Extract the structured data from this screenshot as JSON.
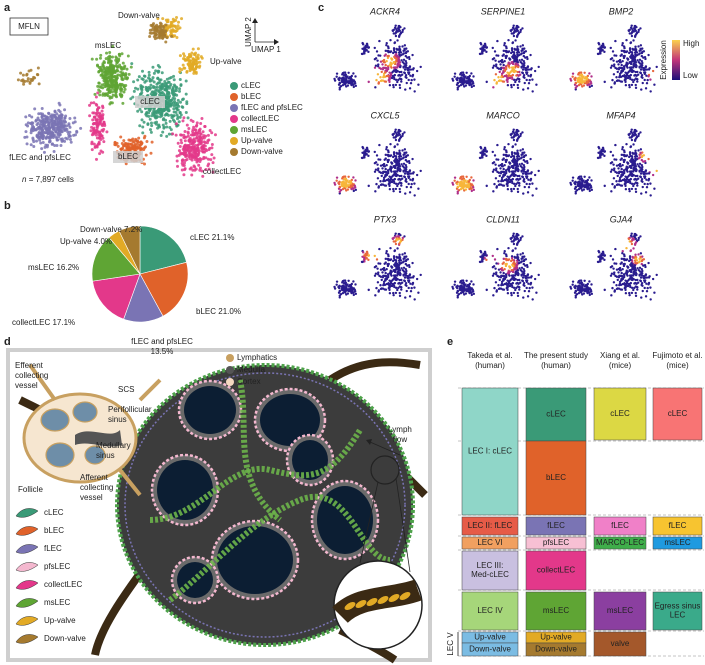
{
  "panels": {
    "a": {
      "letter": "a",
      "sample": "MFLN",
      "umap_y": "UMAP 2",
      "umap_x": "UMAP 1",
      "cluster_labels": [
        "Down-valve",
        "msLEC",
        "Up-valve",
        "cLEC",
        "fLEC and pfsLEC",
        "bLEC",
        "collectLEC"
      ],
      "n_symbol": "n",
      "n_text": "= 7,897 cells"
    },
    "b": {
      "letter": "b"
    },
    "c": {
      "letter": "c",
      "genes": [
        "ACKR4",
        "SERPINE1",
        "BMP2",
        "CXCL5",
        "MARCO",
        "MFAP4",
        "PTX3",
        "CLDN11",
        "GJA4"
      ],
      "colorbar_title": "Expression",
      "high": "High",
      "low": "Low"
    },
    "d": {
      "letter": "d",
      "inset_legend": [
        "Lymphatics",
        "Medulla",
        "Cortex"
      ],
      "inset_labels": [
        [
          "Efferent",
          "collecting",
          "vessel"
        ],
        [
          "SCS"
        ],
        [
          "Perifollicular",
          "sinus"
        ],
        [
          "Medullary",
          "sinus"
        ],
        [
          "Follicle"
        ],
        [
          "Afferent",
          "collecting",
          "vessel"
        ]
      ],
      "cell_types": [
        {
          "name": "cLEC",
          "color": "#3a9a77"
        },
        {
          "name": "bLEC",
          "color": "#e0622a"
        },
        {
          "name": "fLEC",
          "color": "#7a74b4"
        },
        {
          "name": "pfsLEC",
          "color": "#f4b8cf"
        },
        {
          "name": "collectLEC",
          "color": "#e3388a"
        },
        {
          "name": "msLEC",
          "color": "#5fa534"
        },
        {
          "name": "Up-valve",
          "color": "#e2aa25"
        },
        {
          "name": "Down-valve",
          "color": "#a57a2f"
        }
      ],
      "flow_label": [
        "Lymph",
        "flow"
      ]
    },
    "e": {
      "letter": "e",
      "side_label": "LEC V",
      "columns": [
        {
          "header": [
            "Takeda et al.",
            "(human)"
          ],
          "cells": [
            {
              "lines": [
                "LEC I: cLEC"
              ],
              "color": "#8fd6c8"
            },
            {
              "lines": [
                "LEC II: fLEC"
              ],
              "color": "#e65b47"
            },
            {
              "lines": [
                "LEC VI"
              ],
              "color": "#f1a060"
            },
            {
              "lines": [
                "LEC III:",
                "Med-cLEC"
              ],
              "color": "#c9c0e0"
            },
            {
              "lines": [
                "LEC IV"
              ],
              "color": "#a6d67a"
            },
            {
              "lines": [
                "Up-valve"
              ],
              "color": "#7bbce3"
            },
            {
              "lines": [
                "Down-valve"
              ],
              "color": "#7bbce3"
            }
          ]
        },
        {
          "header": [
            "The present study",
            "(human)"
          ],
          "cells": [
            {
              "lines": [
                "cLEC"
              ],
              "color": "#3a9a77"
            },
            {
              "lines": [
                "bLEC"
              ],
              "color": "#e0622a"
            },
            {
              "lines": [
                "fLEC"
              ],
              "color": "#7a74b4"
            },
            {
              "lines": [
                "pfsLEC"
              ],
              "color": "#f7c0d4"
            },
            {
              "lines": [
                "collectLEC"
              ],
              "color": "#e3388a"
            },
            {
              "lines": [
                "msLEC"
              ],
              "color": "#5fa534"
            },
            {
              "lines": [
                "Up-valve"
              ],
              "color": "#e2aa25"
            },
            {
              "lines": [
                "Down-valve"
              ],
              "color": "#a57a2f"
            }
          ]
        },
        {
          "header": [
            "Xiang et al.",
            "(mice)"
          ],
          "cells": [
            {
              "lines": [
                "cLEC"
              ],
              "color": "#dcd844"
            },
            {
              "lines": [
                "fLEC"
              ],
              "color": "#f080c8"
            },
            {
              "lines": [
                "MARCO-LEC"
              ],
              "color": "#3fae4a"
            },
            {
              "lines": [
                "msLEC"
              ],
              "color": "#8b3fa0"
            },
            {
              "lines": [
                "valve"
              ],
              "color": "#a4582b"
            }
          ]
        },
        {
          "header": [
            "Fujimoto et al.",
            "(mice)"
          ],
          "cells": [
            {
              "lines": [
                "cLEC"
              ],
              "color": "#f87474"
            },
            {
              "lines": [
                "fLEC"
              ],
              "color": "#f7c430"
            },
            {
              "lines": [
                "msLEC"
              ],
              "color": "#1f9ae0"
            },
            {
              "lines": [
                "Egress sinus",
                "LEC"
              ],
              "color": "#3aaa8a"
            }
          ]
        }
      ]
    }
  },
  "chart_data": {
    "type": "pie",
    "categories": [
      "cLEC",
      "bLEC",
      "fLEC and pfsLEC",
      "collectLEC",
      "msLEC",
      "Up-valve",
      "Down-valve"
    ],
    "values": [
      21.1,
      21.0,
      13.5,
      17.1,
      16.2,
      4.0,
      7.2
    ],
    "value_labels": [
      "21.1%",
      "21.0%",
      "13.5%",
      "17.1%",
      "16.2%",
      "4.0%",
      "7.2%"
    ],
    "colors": [
      "#3a9a77",
      "#e0622a",
      "#7a74b4",
      "#e3388a",
      "#5fa534",
      "#e2aa25",
      "#a57a2f"
    ]
  }
}
